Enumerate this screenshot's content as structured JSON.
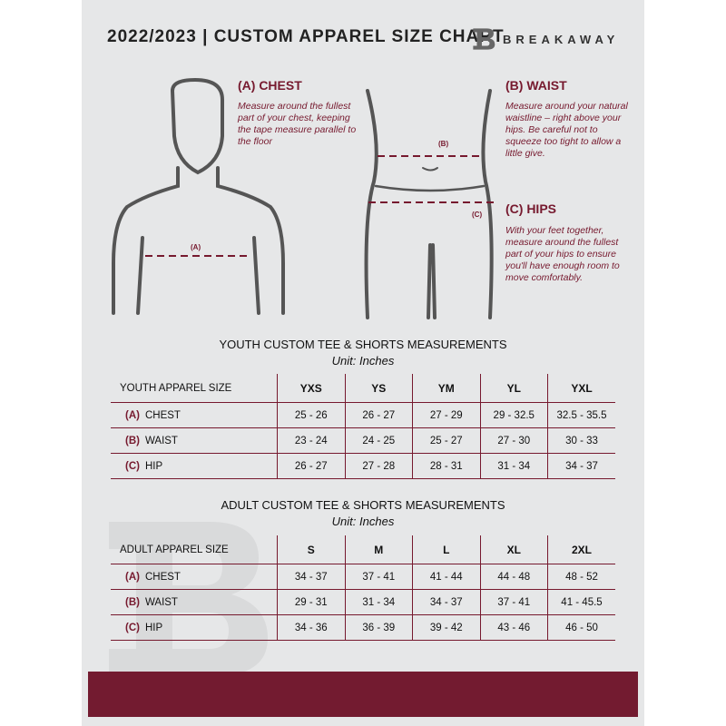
{
  "header": {
    "title": "2022/2023  |  CUSTOM APPAREL SIZE CHART",
    "brand": "BREAKAWAY"
  },
  "guides": {
    "chest": {
      "heading": "(A) CHEST",
      "text": "Measure around the fullest part of your chest, keeping the tape measure parallel to the floor",
      "tag": "(A)"
    },
    "waist": {
      "heading": "(B) WAIST",
      "text": "Measure around your natural waistline – right above your hips. Be careful not to squeeze too tight to allow a little give.",
      "tag": "(B)"
    },
    "hips": {
      "heading": "(C) HIPS",
      "text": "With your feet together, measure around the fullest part of your hips to ensure you'll have enough room to move comfortably.",
      "tag": "(C)"
    }
  },
  "colors": {
    "accent": "#731b30",
    "background": "#e6e7e8"
  },
  "tables": [
    {
      "title": "YOUTH CUSTOM TEE & SHORTS MEASUREMENTS",
      "unit": "Unit: Inches",
      "size_label": "YOUTH APPAREL SIZE",
      "sizes": [
        "YXS",
        "YS",
        "YM",
        "YL",
        "YXL"
      ],
      "rows": [
        {
          "code": "(A)",
          "label": "CHEST",
          "values": [
            "25 - 26",
            "26 - 27",
            "27 - 29",
            "29 - 32.5",
            "32.5 - 35.5"
          ]
        },
        {
          "code": "(B)",
          "label": "WAIST",
          "values": [
            "23 - 24",
            "24 - 25",
            "25 - 27",
            "27 - 30",
            "30 - 33"
          ]
        },
        {
          "code": "(C)",
          "label": "HIP",
          "values": [
            "26 - 27",
            "27 - 28",
            "28 - 31",
            "31 - 34",
            "34 - 37"
          ]
        }
      ]
    },
    {
      "title": "ADULT CUSTOM TEE & SHORTS MEASUREMENTS",
      "unit": "Unit: Inches",
      "size_label": "ADULT APPAREL SIZE",
      "sizes": [
        "S",
        "M",
        "L",
        "XL",
        "2XL"
      ],
      "rows": [
        {
          "code": "(A)",
          "label": "CHEST",
          "values": [
            "34 - 37",
            "37 - 41",
            "41 - 44",
            "44 - 48",
            "48 - 52"
          ]
        },
        {
          "code": "(B)",
          "label": "WAIST",
          "values": [
            "29 - 31",
            "31 - 34",
            "34 - 37",
            "37 - 41",
            "41 - 45.5"
          ]
        },
        {
          "code": "(C)",
          "label": "HIP",
          "values": [
            "34 - 36",
            "36 - 39",
            "39 - 42",
            "43 - 46",
            "46 - 50"
          ]
        }
      ]
    }
  ]
}
